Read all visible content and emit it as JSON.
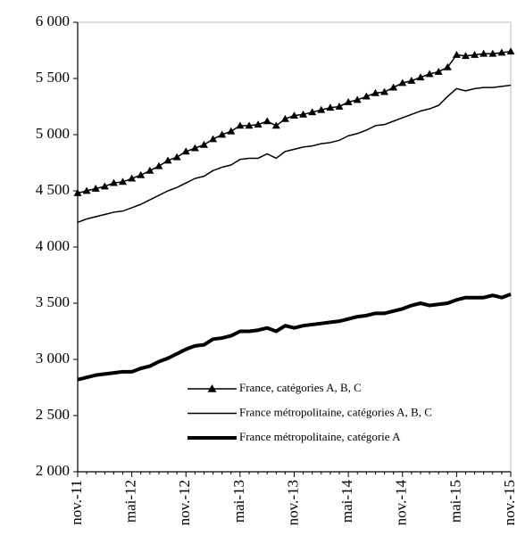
{
  "chart_data": {
    "type": "line",
    "categories": [
      "nov.-11",
      null,
      null,
      null,
      null,
      null,
      "mai-12",
      null,
      null,
      null,
      null,
      null,
      "nov.-12",
      null,
      null,
      null,
      null,
      null,
      "mai-13",
      null,
      null,
      null,
      null,
      null,
      "nov.-13",
      null,
      null,
      null,
      null,
      null,
      "mai-14",
      null,
      null,
      null,
      null,
      null,
      "nov.-14",
      null,
      null,
      null,
      null,
      null,
      "mai-15",
      null,
      null,
      null,
      null,
      null,
      "nov.-15"
    ],
    "series": [
      {
        "name": "France, catégories A, B, C",
        "color": "#000000",
        "line_width": 1.5,
        "marker": "triangle",
        "values": [
          4480,
          4500,
          4520,
          4540,
          4570,
          4580,
          4610,
          4640,
          4680,
          4720,
          4770,
          4800,
          4850,
          4880,
          4910,
          4960,
          5000,
          5030,
          5080,
          5080,
          5090,
          5120,
          5080,
          5140,
          5170,
          5180,
          5200,
          5220,
          5240,
          5250,
          5290,
          5310,
          5340,
          5370,
          5380,
          5420,
          5460,
          5480,
          5510,
          5540,
          5560,
          5600,
          5710,
          5700,
          5710,
          5720,
          5720,
          5730,
          5740
        ]
      },
      {
        "name": "France métropolitaine, catégories A, B, C",
        "color": "#000000",
        "line_width": 1.5,
        "marker": "none",
        "values": [
          4220,
          4250,
          4270,
          4290,
          4310,
          4320,
          4350,
          4380,
          4420,
          4460,
          4500,
          4530,
          4570,
          4610,
          4630,
          4680,
          4710,
          4730,
          4780,
          4790,
          4790,
          4830,
          4790,
          4850,
          4870,
          4890,
          4900,
          4920,
          4930,
          4950,
          4990,
          5010,
          5040,
          5080,
          5090,
          5120,
          5150,
          5180,
          5210,
          5230,
          5260,
          5340,
          5410,
          5390,
          5410,
          5420,
          5420,
          5430,
          5440
        ]
      },
      {
        "name": "France métropolitaine, catégorie A",
        "color": "#000000",
        "line_width": 4,
        "marker": "none",
        "values": [
          2820,
          2840,
          2860,
          2870,
          2880,
          2890,
          2890,
          2920,
          2940,
          2980,
          3010,
          3050,
          3090,
          3120,
          3130,
          3180,
          3190,
          3210,
          3250,
          3250,
          3260,
          3280,
          3250,
          3300,
          3280,
          3300,
          3310,
          3320,
          3330,
          3340,
          3360,
          3380,
          3390,
          3410,
          3410,
          3430,
          3450,
          3480,
          3500,
          3480,
          3490,
          3500,
          3530,
          3550,
          3550,
          3550,
          3570,
          3550,
          3580
        ]
      }
    ],
    "ylim": [
      2000,
      6000
    ],
    "yticks": [
      {
        "value": 2000,
        "label": "2 000"
      },
      {
        "value": 2500,
        "label": "2 500"
      },
      {
        "value": 3000,
        "label": "3 000"
      },
      {
        "value": 3500,
        "label": "3 500"
      },
      {
        "value": 4000,
        "label": "4 000"
      },
      {
        "value": 4500,
        "label": "4 500"
      },
      {
        "value": 5000,
        "label": "5 000"
      },
      {
        "value": 5500,
        "label": "5 500"
      },
      {
        "value": 6000,
        "label": "6 000"
      }
    ],
    "grid": false
  }
}
